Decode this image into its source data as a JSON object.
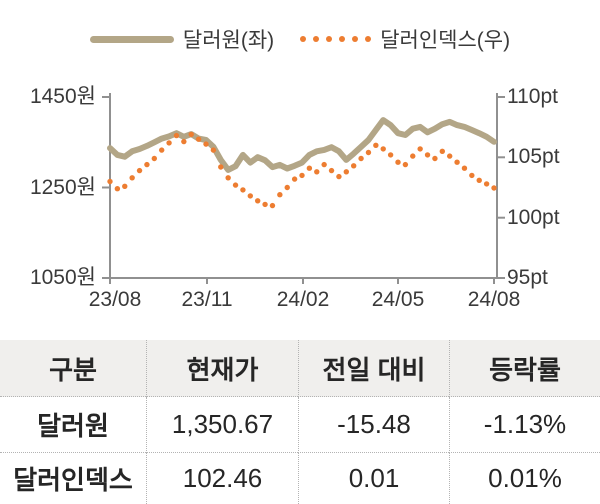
{
  "legend": {
    "series1": "달러원(좌)",
    "series2": "달러인덱스(우)"
  },
  "chart_data": {
    "type": "line",
    "title": "",
    "x_start": "2023-08",
    "x_end": "2024-08",
    "x_tick_labels": [
      "23/08",
      "23/11",
      "24/02",
      "24/05",
      "24/08"
    ],
    "left_axis": {
      "label": "원",
      "ticks": [
        "1450원",
        "1250원",
        "1050원"
      ],
      "range": [
        1050,
        1450
      ]
    },
    "right_axis": {
      "label": "pt",
      "ticks": [
        "110pt",
        "105pt",
        "100pt",
        "95pt"
      ],
      "range": [
        95,
        110
      ]
    },
    "legend_position": "top",
    "grid": false,
    "series": [
      {
        "name": "달러원(좌)",
        "axis": "left",
        "style": "solid",
        "color": "#b3a687",
        "values": [
          1337,
          1322,
          1318,
          1330,
          1335,
          1342,
          1350,
          1358,
          1363,
          1370,
          1362,
          1368,
          1358,
          1355,
          1340,
          1311,
          1289,
          1297,
          1322,
          1305,
          1317,
          1310,
          1295,
          1300,
          1292,
          1298,
          1305,
          1322,
          1330,
          1333,
          1339,
          1330,
          1311,
          1325,
          1340,
          1355,
          1377,
          1399,
          1388,
          1370,
          1366,
          1380,
          1384,
          1372,
          1380,
          1390,
          1395,
          1388,
          1384,
          1377,
          1370,
          1362,
          1351
        ]
      },
      {
        "name": "달러인덱스(우)",
        "axis": "right",
        "style": "dotted",
        "color": "#ed7d31",
        "values": [
          103.0,
          102.4,
          102.6,
          103.3,
          103.9,
          104.4,
          104.9,
          105.6,
          106.2,
          106.8,
          106.3,
          106.9,
          106.5,
          106.1,
          105.6,
          104.2,
          103.3,
          102.7,
          102.3,
          101.8,
          101.4,
          101.1,
          101.0,
          101.9,
          102.5,
          103.2,
          103.5,
          104.1,
          103.8,
          104.4,
          103.9,
          103.4,
          103.8,
          104.3,
          104.9,
          105.4,
          106.0,
          105.7,
          105.2,
          104.6,
          104.4,
          105.1,
          105.7,
          105.2,
          104.9,
          105.5,
          105.1,
          104.6,
          104.1,
          103.5,
          103.1,
          102.8,
          102.46
        ]
      }
    ]
  },
  "table": {
    "headers": [
      "구분",
      "현재가",
      "전일 대비",
      "등락률"
    ],
    "rows": [
      {
        "cells": [
          "달러원",
          "1,350.67",
          "-15.48",
          "-1.13%"
        ]
      },
      {
        "cells": [
          "달러인덱스",
          "102.46",
          "0.01",
          "0.01%"
        ]
      }
    ]
  },
  "colors": {
    "usdkrw_line": "#b3a687",
    "dxy_dot": "#ed7d31",
    "axis": "#909090",
    "table_header_bg": "#f0efed",
    "dotted_border": "#b3b3b3",
    "text": "#3a3a3a"
  }
}
